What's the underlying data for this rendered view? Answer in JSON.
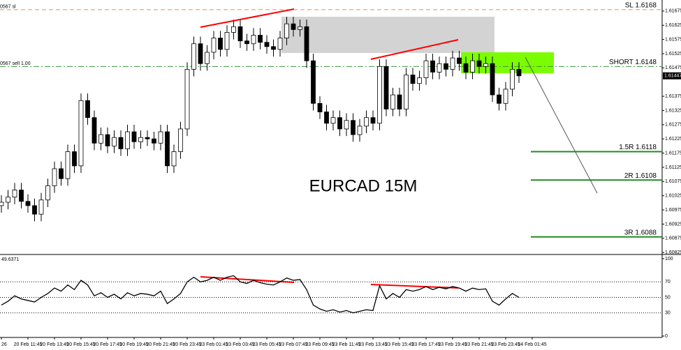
{
  "chart_data": {
    "type": "candlestick",
    "annotation": "EURCAD 15M",
    "categories": [
      "26",
      null,
      null,
      null,
      "20 Feb 11:45",
      null,
      null,
      null,
      "20 Feb 13:45",
      null,
      null,
      null,
      "20 Feb 15:45",
      null,
      null,
      null,
      "20 Feb 17:45",
      null,
      null,
      null,
      "20 Feb 19:45",
      null,
      null,
      null,
      "20 Feb 21:45",
      null,
      null,
      null,
      "20 Feb 23:45",
      null,
      null,
      null,
      "23 Feb 01:45",
      null,
      null,
      null,
      "23 Feb 03:45",
      null,
      null,
      null,
      "23 Feb 05:45",
      null,
      null,
      null,
      "23 Feb 07:45",
      null,
      null,
      null,
      "23 Feb 09:45",
      null,
      null,
      null,
      "23 Feb 11:45",
      null,
      null,
      null,
      "23 Feb 13:45",
      null,
      null,
      null,
      "23 Feb 15:45",
      null,
      null,
      null,
      "23 Feb 17:45",
      null,
      null,
      null,
      "23 Feb 19:45",
      null,
      null,
      null,
      "23 Feb 21:45",
      null,
      null,
      null,
      "23 Feb 23:45",
      null,
      null,
      null,
      "24 Feb 01:45"
    ],
    "open": [
      1.6099,
      1.61002,
      1.6102,
      1.61045,
      1.61005,
      1.6099,
      1.6096,
      1.6101,
      1.6106,
      1.6112,
      1.61085,
      1.6118,
      1.6113,
      1.6136,
      1.613,
      1.6121,
      1.6124,
      1.612,
      1.6123,
      1.6119,
      1.6125,
      1.61215,
      1.6123,
      1.61225,
      1.6121,
      1.6125,
      1.6113,
      1.6118,
      1.6126,
      1.6147,
      1.6156,
      1.6149,
      1.6153,
      1.6158,
      1.6154,
      1.616,
      1.6162,
      1.6157,
      1.6156,
      1.6159,
      1.61565,
      1.6155,
      1.6154,
      1.6158,
      1.6163,
      1.6161,
      1.6162,
      1.615,
      1.6135,
      1.6132,
      1.6128,
      1.613,
      1.6126,
      1.6129,
      1.6124,
      1.6127,
      1.613,
      1.6128,
      1.6148,
      1.6133,
      1.6138,
      1.6133,
      1.6145,
      1.6142,
      1.6144,
      1.615,
      1.6146,
      1.6149,
      1.6147,
      1.6151,
      1.6149,
      1.6146,
      1.615,
      1.6148,
      1.6149,
      1.6138,
      1.6135,
      1.614,
      1.6147,
      null,
      null
    ],
    "high": [
      1.61027,
      1.61045,
      1.6107,
      1.6107,
      1.6103,
      1.61015,
      1.61035,
      1.61085,
      1.61145,
      1.61145,
      1.61205,
      1.61205,
      1.61385,
      1.61385,
      1.61325,
      1.61265,
      1.61265,
      1.61255,
      1.61255,
      1.61275,
      1.61275,
      1.61255,
      1.61255,
      1.6125,
      1.61275,
      1.61275,
      1.61205,
      1.61285,
      1.61495,
      1.61585,
      1.61585,
      1.61555,
      1.61605,
      1.61605,
      1.61625,
      1.61645,
      1.61645,
      1.61595,
      1.61615,
      1.61615,
      1.6159,
      1.61575,
      1.61605,
      1.61655,
      1.61655,
      1.61645,
      1.61645,
      1.61525,
      1.61375,
      1.61345,
      1.61325,
      1.61325,
      1.61315,
      1.61315,
      1.61295,
      1.61325,
      1.61325,
      1.61505,
      1.61505,
      1.61405,
      1.61405,
      1.61475,
      1.61475,
      1.61465,
      1.61525,
      1.61525,
      1.61515,
      1.61515,
      1.61535,
      1.61535,
      1.61515,
      1.61525,
      1.61525,
      1.61515,
      1.61515,
      1.61405,
      1.61425,
      1.61495,
      1.61495,
      null,
      null
    ],
    "low": [
      1.60965,
      1.60977,
      1.60995,
      1.6098,
      1.60965,
      1.60935,
      1.60935,
      1.60985,
      1.61035,
      1.6106,
      1.6106,
      1.61105,
      1.61105,
      1.61275,
      1.61185,
      1.61185,
      1.61175,
      1.61175,
      1.61165,
      1.61165,
      1.6119,
      1.6119,
      1.612,
      1.61185,
      1.61185,
      1.61105,
      1.61105,
      1.61155,
      1.61235,
      1.61445,
      1.61465,
      1.61465,
      1.61505,
      1.61515,
      1.61515,
      1.61575,
      1.61545,
      1.61535,
      1.61535,
      1.6154,
      1.61525,
      1.61515,
      1.61515,
      1.61555,
      1.61585,
      1.61585,
      1.61475,
      1.61325,
      1.61295,
      1.61255,
      1.61255,
      1.61235,
      1.61235,
      1.61215,
      1.61215,
      1.61245,
      1.61255,
      1.61255,
      1.61305,
      1.61305,
      1.61305,
      1.61305,
      1.61395,
      1.61395,
      1.61415,
      1.61435,
      1.61435,
      1.61445,
      1.61445,
      1.61465,
      1.61435,
      1.61435,
      1.61455,
      1.61455,
      1.61355,
      1.61325,
      1.61325,
      1.61375,
      1.61422,
      null,
      null
    ],
    "close": [
      1.61002,
      1.6102,
      1.61045,
      1.61005,
      1.6099,
      1.6096,
      1.6101,
      1.6106,
      1.6112,
      1.61085,
      1.6118,
      1.6113,
      1.6136,
      1.613,
      1.6121,
      1.6124,
      1.612,
      1.6123,
      1.6119,
      1.6125,
      1.61215,
      1.6123,
      1.61225,
      1.6121,
      1.6125,
      1.6113,
      1.6118,
      1.6126,
      1.6147,
      1.6156,
      1.6149,
      1.6153,
      1.6158,
      1.6154,
      1.616,
      1.6162,
      1.6157,
      1.6156,
      1.6159,
      1.61565,
      1.6155,
      1.6154,
      1.6158,
      1.6163,
      1.6161,
      1.6162,
      1.615,
      1.6135,
      1.6132,
      1.6128,
      1.613,
      1.6126,
      1.6129,
      1.6124,
      1.6127,
      1.613,
      1.6128,
      1.6148,
      1.6133,
      1.6138,
      1.6133,
      1.6145,
      1.6142,
      1.6144,
      1.615,
      1.6146,
      1.6149,
      1.6147,
      1.6151,
      1.6149,
      1.6146,
      1.615,
      1.6148,
      1.6149,
      1.6138,
      1.6135,
      1.614,
      1.6147,
      1.61447,
      null,
      null
    ],
    "ylim": [
      1.60818,
      1.61714
    ],
    "yticks": [
      1.61675,
      1.61625,
      1.61575,
      1.61525,
      1.61475,
      1.61375,
      1.61325,
      1.61275,
      1.61225,
      1.61175,
      1.61125,
      1.61075,
      1.61025,
      1.60975,
      1.60925,
      1.60875,
      1.60825
    ],
    "last_price": 1.61447,
    "levels": [
      {
        "value": 1.6168,
        "label": "SL 1.6168",
        "order_label": "0567 sl",
        "style": "dashed",
        "color": "#e8914f"
      },
      {
        "value": 1.6148,
        "label": "SHORT 1.6148",
        "order_label": "0567 sell 1.00",
        "style": "dashdot",
        "color": "#3a9a3a"
      },
      {
        "value": 1.6118,
        "label": "1.5R 1.6118",
        "style": "solid",
        "color": "#228b22"
      },
      {
        "value": 1.6108,
        "label": "2R 1.6108",
        "style": "solid",
        "color": "#228b22"
      },
      {
        "value": 1.6088,
        "label": "3R 1.6088",
        "style": "solid",
        "color": "#228b22"
      }
    ],
    "indicator": {
      "label": "49.6371",
      "color": "#000000",
      "values": [
        40,
        45,
        52,
        48,
        46,
        44,
        50,
        55,
        62,
        58,
        66,
        60,
        72,
        66,
        52,
        56,
        50,
        54,
        48,
        56,
        52,
        55,
        54,
        52,
        58,
        42,
        48,
        55,
        70,
        76,
        70,
        72,
        76,
        72,
        76,
        78,
        70,
        68,
        72,
        69,
        67,
        66,
        70,
        75,
        72,
        73,
        60,
        40,
        35,
        32,
        34,
        31,
        33,
        30,
        32,
        34,
        33,
        65,
        48,
        55,
        50,
        60,
        58,
        60,
        64,
        60,
        63,
        61,
        64,
        62,
        58,
        62,
        60,
        61,
        45,
        40,
        48,
        55,
        50,
        null,
        null
      ],
      "ylim": [
        0,
        100
      ],
      "yticks": [
        100,
        70,
        50,
        30,
        0
      ]
    }
  }
}
